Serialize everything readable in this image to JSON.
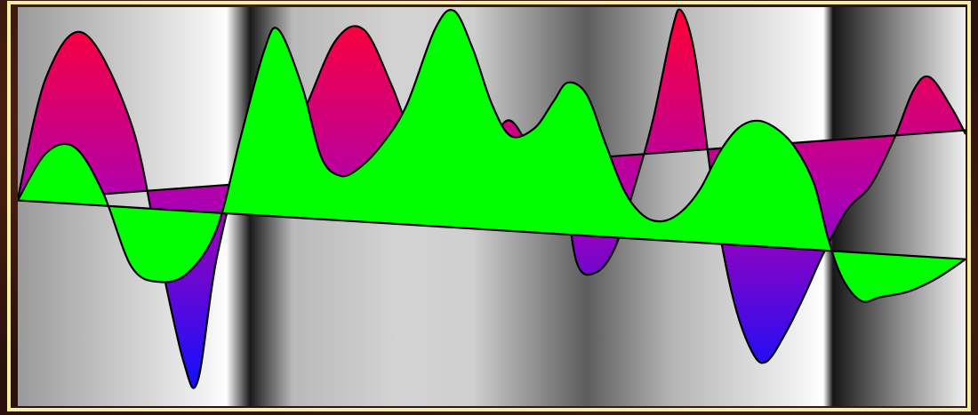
{
  "colors": {
    "background_dark": "#2a120a",
    "frame": "#f4eea0",
    "green_wave": "#00ff00",
    "outline": "#000000",
    "gradient_top": "#ff0033",
    "gradient_mid": "#b000b0",
    "gradient_bottom": "#1010ff"
  },
  "plot": {
    "x_range": [
      0,
      1
    ],
    "y_range": [
      -1,
      1
    ],
    "gradient_wave": {
      "name": "",
      "points": [
        [
          0.0,
          0.01
        ],
        [
          0.03,
          0.65
        ],
        [
          0.07,
          0.88
        ],
        [
          0.12,
          0.4
        ],
        [
          0.15,
          -0.3
        ],
        [
          0.175,
          -0.85
        ],
        [
          0.19,
          -0.95
        ],
        [
          0.21,
          -0.3
        ],
        [
          0.24,
          0.23
        ],
        [
          0.27,
          0.2
        ],
        [
          0.3,
          0.45
        ],
        [
          0.335,
          0.84
        ],
        [
          0.365,
          0.9
        ],
        [
          0.395,
          0.6
        ],
        [
          0.425,
          0.23
        ],
        [
          0.46,
          0.15
        ],
        [
          0.5,
          0.33
        ],
        [
          0.52,
          0.42
        ],
        [
          0.545,
          0.25
        ],
        [
          0.56,
          0.3
        ],
        [
          0.575,
          0.12
        ],
        [
          0.59,
          -0.33
        ],
        [
          0.61,
          -0.38
        ],
        [
          0.63,
          -0.25
        ],
        [
          0.65,
          0.06
        ],
        [
          0.67,
          0.42
        ],
        [
          0.69,
          0.89
        ],
        [
          0.7,
          1.0
        ],
        [
          0.715,
          0.75
        ],
        [
          0.735,
          0.0
        ],
        [
          0.755,
          -0.52
        ],
        [
          0.775,
          -0.8
        ],
        [
          0.79,
          -0.85
        ],
        [
          0.81,
          -0.7
        ],
        [
          0.83,
          -0.5
        ],
        [
          0.85,
          -0.28
        ],
        [
          0.875,
          -0.05
        ],
        [
          0.9,
          0.08
        ],
        [
          0.925,
          0.33
        ],
        [
          0.945,
          0.58
        ],
        [
          0.962,
          0.65
        ],
        [
          0.985,
          0.49
        ],
        [
          1.0,
          0.35
        ]
      ]
    },
    "green_wave": {
      "name": "",
      "points": [
        [
          0.0,
          0.0
        ],
        [
          0.03,
          0.25
        ],
        [
          0.06,
          0.28
        ],
        [
          0.09,
          0.04
        ],
        [
          0.12,
          -0.35
        ],
        [
          0.15,
          -0.43
        ],
        [
          0.18,
          -0.38
        ],
        [
          0.21,
          -0.15
        ],
        [
          0.235,
          0.33
        ],
        [
          0.26,
          0.79
        ],
        [
          0.275,
          0.9
        ],
        [
          0.3,
          0.6
        ],
        [
          0.32,
          0.23
        ],
        [
          0.34,
          0.13
        ],
        [
          0.36,
          0.17
        ],
        [
          0.385,
          0.3
        ],
        [
          0.41,
          0.5
        ],
        [
          0.44,
          0.9
        ],
        [
          0.46,
          1.0
        ],
        [
          0.48,
          0.8
        ],
        [
          0.5,
          0.51
        ],
        [
          0.52,
          0.34
        ],
        [
          0.545,
          0.38
        ],
        [
          0.565,
          0.52
        ],
        [
          0.58,
          0.62
        ],
        [
          0.6,
          0.56
        ],
        [
          0.62,
          0.3
        ],
        [
          0.64,
          0.05
        ],
        [
          0.66,
          -0.08
        ],
        [
          0.68,
          -0.11
        ],
        [
          0.7,
          -0.06
        ],
        [
          0.72,
          0.06
        ],
        [
          0.74,
          0.25
        ],
        [
          0.76,
          0.38
        ],
        [
          0.78,
          0.42
        ],
        [
          0.8,
          0.38
        ],
        [
          0.82,
          0.28
        ],
        [
          0.84,
          0.09
        ],
        [
          0.855,
          -0.2
        ],
        [
          0.87,
          -0.41
        ],
        [
          0.89,
          -0.53
        ],
        [
          0.91,
          -0.51
        ],
        [
          0.94,
          -0.48
        ],
        [
          0.97,
          -0.41
        ],
        [
          1.0,
          -0.31
        ]
      ]
    },
    "slant_line": {
      "gradient_baseline": [
        [
          0.0,
          0.0
        ],
        [
          1.0,
          0.37
        ]
      ],
      "green_baseline": [
        [
          0.0,
          0.0
        ],
        [
          1.0,
          -0.31
        ]
      ]
    },
    "background_bands": [
      {
        "at": 0.0,
        "tone": "#9a9a9a"
      },
      {
        "at": 0.2,
        "tone": "#f2f2f2"
      },
      {
        "at": 0.22,
        "tone": "#ffffff"
      },
      {
        "at": 0.245,
        "tone": "#1a1a1a"
      },
      {
        "at": 0.29,
        "tone": "#b9b9b9"
      },
      {
        "at": 0.4,
        "tone": "#d3d3d3"
      },
      {
        "at": 0.48,
        "tone": "#cfcfcf"
      },
      {
        "at": 0.6,
        "tone": "#5d5d5d"
      },
      {
        "at": 0.69,
        "tone": "#b5b5b5"
      },
      {
        "at": 0.82,
        "tone": "#efefef"
      },
      {
        "at": 0.85,
        "tone": "#ffffff"
      },
      {
        "at": 0.86,
        "tone": "#161616"
      },
      {
        "at": 0.93,
        "tone": "#8a8a8a"
      },
      {
        "at": 1.0,
        "tone": "#f0f0f0"
      }
    ]
  }
}
